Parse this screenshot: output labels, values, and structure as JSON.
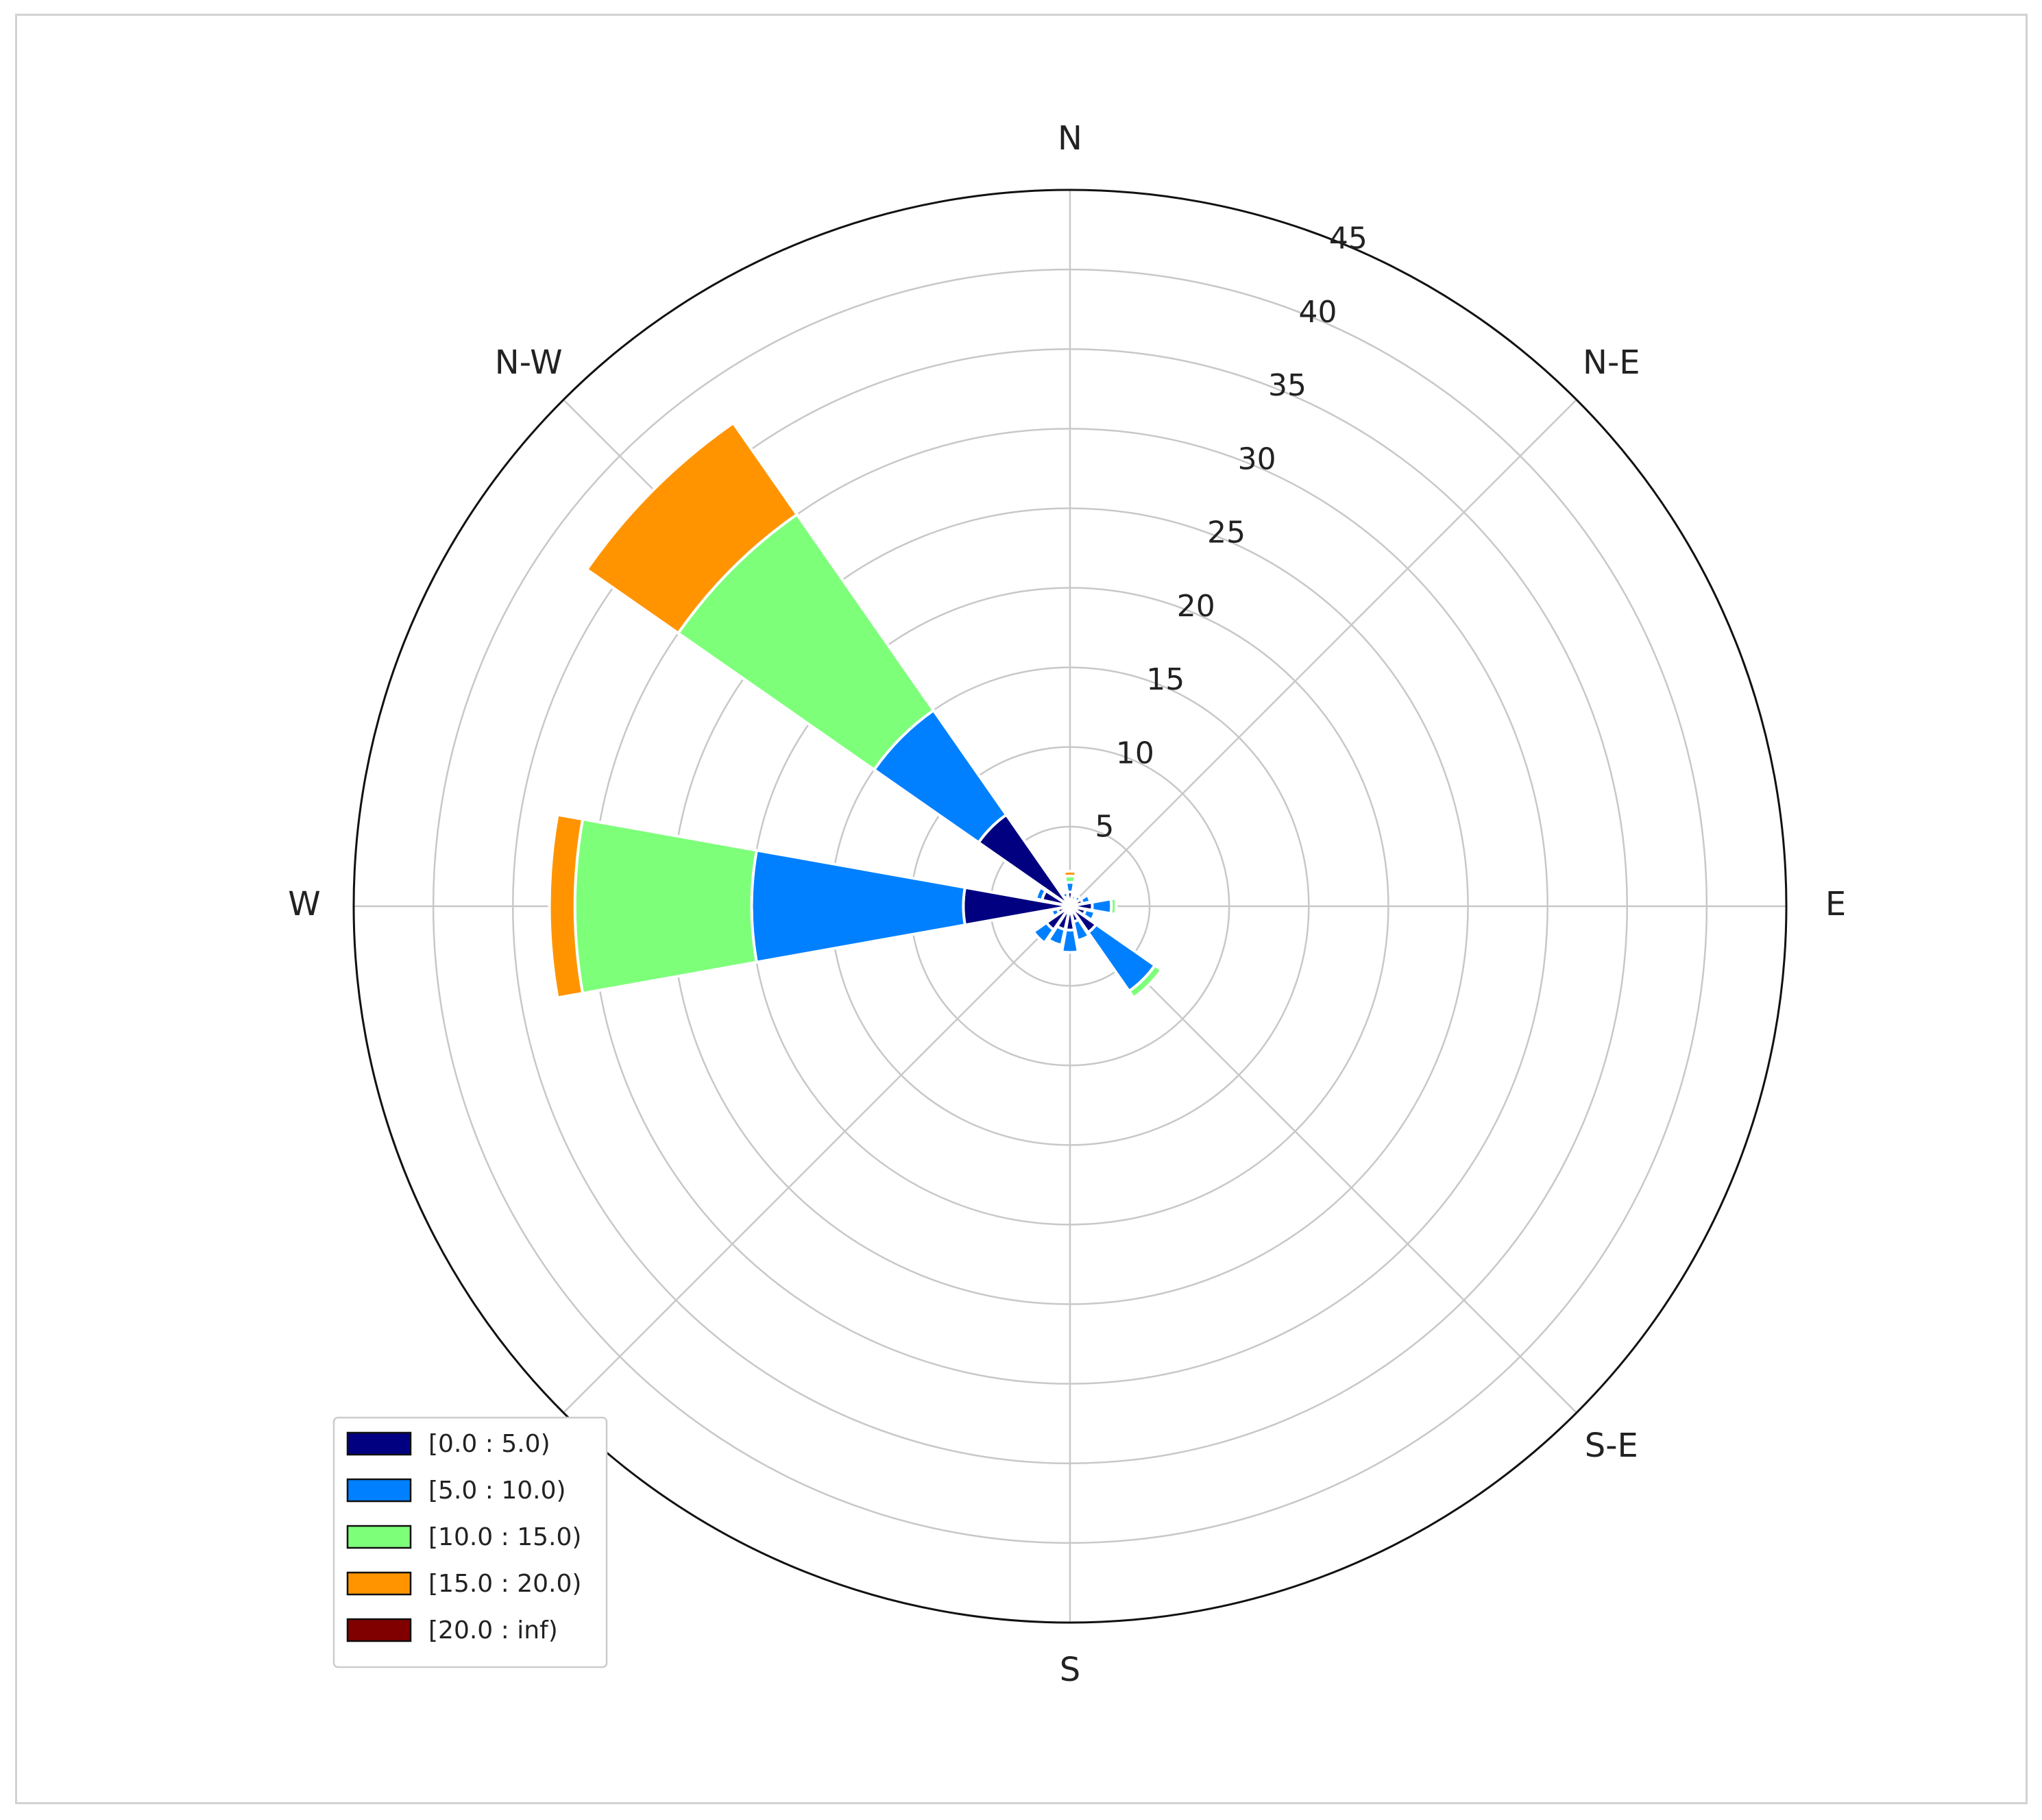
{
  "chart_data": {
    "type": "windrose",
    "title": "",
    "direction_labels": [
      "N",
      "N-E",
      "E",
      "S-E",
      "S",
      "",
      "W",
      "N-W"
    ],
    "direction_angles_deg": [
      0,
      45,
      90,
      135,
      180,
      225,
      270,
      315
    ],
    "radial_ticks": [
      5,
      10,
      15,
      20,
      25,
      30,
      35,
      40,
      45
    ],
    "rmax": 45,
    "grid": true,
    "sector_width_deg": 22.5,
    "series": [
      {
        "name": "[0.0 : 5.0)",
        "color": "#000080"
      },
      {
        "name": "[5.0 : 10.0)",
        "color": "#0080ff"
      },
      {
        "name": "[10.0 : 15.0)",
        "color": "#7dff7a"
      },
      {
        "name": "[15.0 : 20.0)",
        "color": "#ff9400"
      },
      {
        "name": "[20.0 : inf)",
        "color": "#800000"
      }
    ],
    "sectors": [
      {
        "direction_deg": 0,
        "values": [
          0.9,
          0.6,
          0.4,
          0.3,
          0
        ]
      },
      {
        "direction_deg": 22.5,
        "values": [
          0.4,
          0.3,
          0,
          0,
          0
        ]
      },
      {
        "direction_deg": 45,
        "values": [
          0.5,
          0.3,
          0,
          0,
          0
        ]
      },
      {
        "direction_deg": 67.5,
        "values": [
          0.8,
          0.5,
          0,
          0,
          0
        ]
      },
      {
        "direction_deg": 90,
        "values": [
          1.4,
          1.2,
          0.3,
          0,
          0
        ]
      },
      {
        "direction_deg": 112.5,
        "values": [
          1.0,
          0.6,
          0,
          0,
          0
        ]
      },
      {
        "direction_deg": 135,
        "values": [
          2.0,
          4.5,
          0.5,
          0,
          0
        ]
      },
      {
        "direction_deg": 157.5,
        "values": [
          1.0,
          1.2,
          0,
          0,
          0
        ]
      },
      {
        "direction_deg": 180,
        "values": [
          1.5,
          1.4,
          0,
          0,
          0
        ]
      },
      {
        "direction_deg": 202.5,
        "values": [
          1.5,
          1.0,
          0,
          0,
          0
        ]
      },
      {
        "direction_deg": 225,
        "values": [
          1.8,
          1.0,
          0,
          0,
          0
        ]
      },
      {
        "direction_deg": 247.5,
        "values": [
          0.8,
          0.4,
          0,
          0,
          0
        ]
      },
      {
        "direction_deg": 270,
        "values": [
          6.7,
          13.3,
          11.1,
          1.6,
          0
        ]
      },
      {
        "direction_deg": 292.5,
        "values": [
          1.8,
          0.4,
          0,
          0,
          0
        ]
      },
      {
        "direction_deg": 315,
        "values": [
          7.0,
          8.0,
          15.0,
          7.0,
          0
        ]
      },
      {
        "direction_deg": 337.5,
        "values": [
          0.6,
          0.3,
          0,
          0,
          0
        ]
      }
    ],
    "legend_placement": "lower-left"
  }
}
